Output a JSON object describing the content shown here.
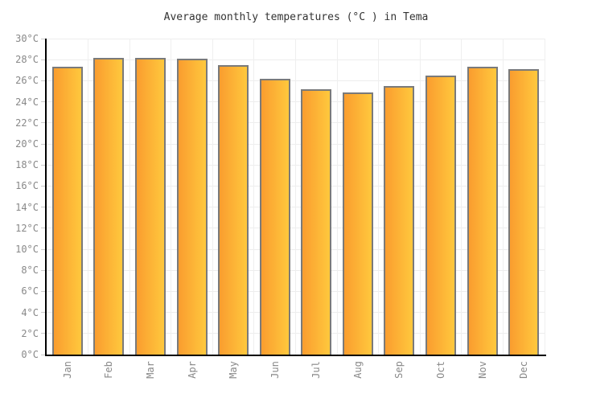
{
  "title": "Average monthly temperatures (°C ) in Tema",
  "colors": {
    "background": "#ffffff",
    "title_text": "#333333",
    "axis_line": "#000000",
    "grid_line": "#ededed",
    "tick_mark": "#cccccc",
    "axis_label_text": "#888888",
    "bar_gradient_left": "#fa9d2f",
    "bar_gradient_right": "#ffc83d",
    "bar_border": "#7a7a7a"
  },
  "chart_data": {
    "type": "bar",
    "title": "Average monthly temperatures (°C ) in Tema",
    "categories": [
      "Jan",
      "Feb",
      "Mar",
      "Apr",
      "May",
      "Jun",
      "Jul",
      "Aug",
      "Sep",
      "Oct",
      "Nov",
      "Dec"
    ],
    "values": [
      27.3,
      28.2,
      28.2,
      28.1,
      27.5,
      26.2,
      25.2,
      24.9,
      25.5,
      26.5,
      27.3,
      27.1
    ],
    "xlabel": "",
    "ylabel": "",
    "ylim": [
      0,
      30
    ],
    "ytick_step": 2,
    "ytick_suffix": "°C",
    "ytick_labels": [
      "0°C",
      "2°C",
      "4°C",
      "6°C",
      "8°C",
      "10°C",
      "12°C",
      "14°C",
      "16°C",
      "18°C",
      "20°C",
      "22°C",
      "24°C",
      "26°C",
      "28°C",
      "30°C"
    ],
    "grid": true,
    "legend": "none",
    "bar_orientation": "vertical",
    "x_label_rotation": -90
  }
}
